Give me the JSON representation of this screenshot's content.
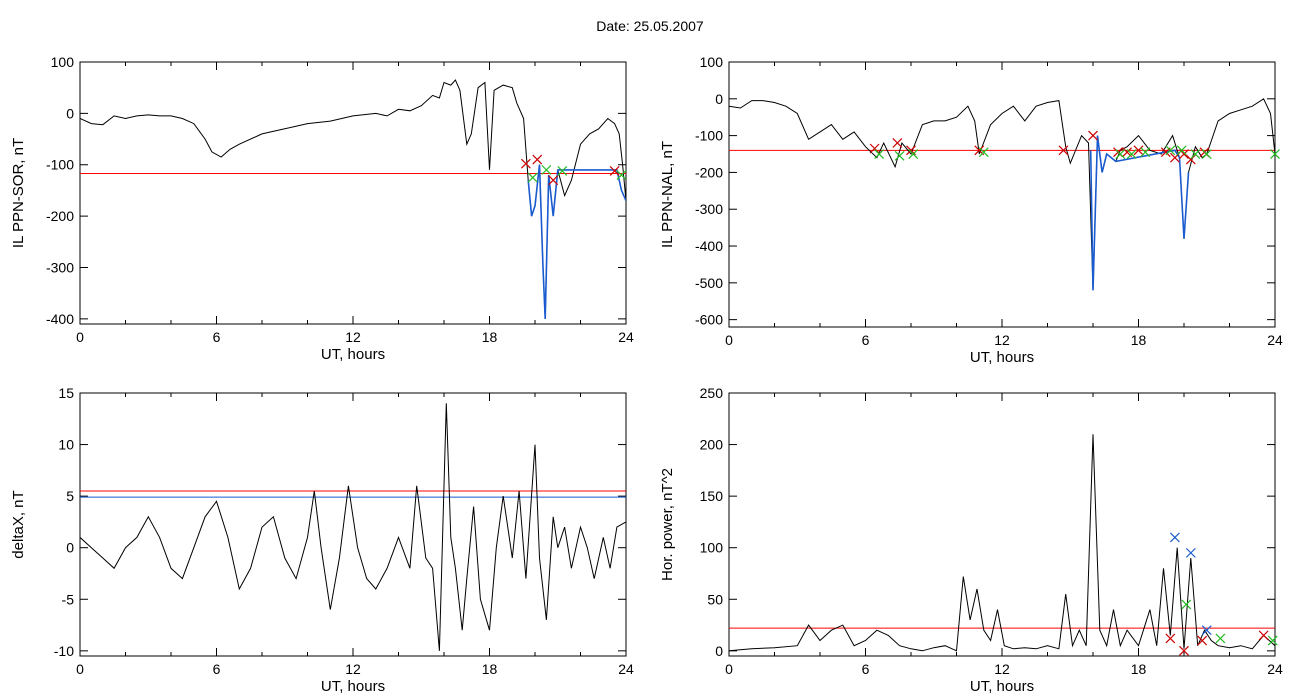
{
  "page": {
    "title": "Date:  25.05.2007"
  },
  "chart_data": [
    {
      "id": "p1",
      "type": "line",
      "xlabel": "UT, hours",
      "ylabel": "IL PPN-SOR, nT",
      "xlim": [
        0,
        24
      ],
      "ylim": [
        -410,
        100
      ],
      "xticks": [
        0,
        6,
        12,
        18,
        24
      ],
      "yticks": [
        -400,
        -300,
        -200,
        -100,
        0,
        100
      ],
      "threshold_lines": [
        {
          "y": -117,
          "color": "#ff0000"
        }
      ],
      "series": [
        {
          "color": "#000000",
          "x": [
            0,
            0.5,
            1,
            1.5,
            2,
            2.5,
            3,
            3.5,
            4,
            4.5,
            5,
            5.5,
            5.8,
            6.2,
            6.6,
            7,
            8,
            9,
            10,
            11,
            12,
            13,
            13.5,
            14,
            14.5,
            15,
            15.5,
            15.8,
            16,
            16.3,
            16.5,
            16.7,
            17,
            17.2,
            17.5,
            17.8,
            18,
            18.2,
            18.6,
            19,
            19.2,
            19.5,
            19.7,
            19.85,
            20,
            20.2,
            20.35,
            20.45,
            20.6,
            20.8,
            21,
            21.3,
            21.6,
            22,
            22.4,
            22.8,
            23.2,
            23.5,
            23.7,
            23.85,
            24
          ],
          "y": [
            -10,
            -20,
            -22,
            -5,
            -10,
            -5,
            -3,
            -5,
            -5,
            -10,
            -20,
            -50,
            -75,
            -85,
            -70,
            -60,
            -40,
            -30,
            -20,
            -15,
            -5,
            0,
            -5,
            8,
            5,
            15,
            35,
            30,
            60,
            55,
            65,
            45,
            -60,
            -40,
            50,
            60,
            -110,
            45,
            55,
            50,
            20,
            -10,
            -130,
            -200,
            -180,
            -100,
            -300,
            -400,
            -120,
            -200,
            -110,
            -160,
            -130,
            -60,
            -40,
            -30,
            -10,
            -20,
            -40,
            -100,
            -170
          ]
        },
        {
          "color": "#1a5ccf",
          "x": [
            19.7,
            19.85,
            20,
            20.2,
            20.35,
            20.45,
            20.6,
            20.8,
            21,
            23.6,
            23.8,
            24
          ],
          "y": [
            -130,
            -200,
            -180,
            -100,
            -300,
            -400,
            -120,
            -200,
            -110,
            -110,
            -150,
            -170
          ]
        }
      ],
      "markers": [
        {
          "color": "#cc0000",
          "x": [
            19.6,
            20.1,
            20.8,
            23.5
          ],
          "y": [
            -98,
            -90,
            -130,
            -112
          ]
        },
        {
          "color": "#22bb22",
          "x": [
            19.9,
            20.5,
            21.2,
            23.8
          ],
          "y": [
            -125,
            -110,
            -112,
            -120
          ]
        }
      ]
    },
    {
      "id": "p2",
      "type": "line",
      "xlabel": "UT, hours",
      "ylabel": "IL PPN-NAL, nT",
      "xlim": [
        0,
        24
      ],
      "ylim": [
        -620,
        100
      ],
      "xticks": [
        0,
        6,
        12,
        18,
        24
      ],
      "yticks": [
        -600,
        -500,
        -400,
        -300,
        -200,
        -100,
        0,
        100
      ],
      "threshold_lines": [
        {
          "y": -140,
          "color": "#ff0000"
        }
      ],
      "series": [
        {
          "color": "#000000",
          "x": [
            0,
            0.5,
            1,
            1.5,
            2,
            2.5,
            3,
            3.5,
            4,
            4.5,
            5,
            5.5,
            6,
            6.5,
            6.8,
            7.3,
            7.6,
            8,
            8.5,
            9,
            9.5,
            10,
            10.5,
            10.8,
            11,
            11.5,
            12,
            12.5,
            13,
            13.5,
            14,
            14.5,
            14.8,
            15,
            15.5,
            15.8,
            16,
            16.2,
            16.4,
            16.6,
            17,
            17.2,
            17.5,
            18,
            18.5,
            19,
            19.5,
            19.8,
            20,
            20.2,
            20.5,
            20.8,
            21,
            21.5,
            22,
            22.5,
            23,
            23.5,
            23.8,
            24
          ],
          "y": [
            -20,
            -25,
            -5,
            -5,
            -10,
            -20,
            -40,
            -110,
            -90,
            -70,
            -110,
            -90,
            -130,
            -160,
            -120,
            -185,
            -120,
            -150,
            -70,
            -60,
            -60,
            -50,
            -20,
            -60,
            -150,
            -70,
            -40,
            -20,
            -60,
            -20,
            -10,
            -5,
            -130,
            -175,
            -100,
            -120,
            -520,
            -100,
            -200,
            -150,
            -170,
            -140,
            -130,
            -100,
            -140,
            -150,
            -100,
            -160,
            -380,
            -200,
            -130,
            -160,
            -150,
            -60,
            -40,
            -30,
            -20,
            0,
            -40,
            -150
          ]
        },
        {
          "color": "#1a5ccf",
          "x": [
            15.9,
            16,
            16.2,
            16.4,
            16.6,
            17,
            19.6,
            19.8,
            20,
            20.2
          ],
          "y": [
            -140,
            -520,
            -100,
            -200,
            -150,
            -170,
            -140,
            -160,
            -380,
            -200
          ]
        }
      ],
      "markers": [
        {
          "color": "#cc0000",
          "x": [
            6.4,
            7.4,
            8,
            11,
            14.7,
            16,
            17.1,
            17.5,
            18,
            19.2,
            19.6,
            20,
            20.3,
            20.9
          ],
          "y": [
            -135,
            -120,
            -140,
            -140,
            -140,
            -100,
            -145,
            -145,
            -140,
            -145,
            -160,
            -150,
            -165,
            -145
          ]
        },
        {
          "color": "#22bb22",
          "x": [
            6.6,
            7.5,
            8.1,
            11.2,
            17.2,
            17.7,
            18.3,
            19.4,
            19.9,
            20.5,
            21,
            24
          ],
          "y": [
            -150,
            -155,
            -150,
            -145,
            -150,
            -150,
            -145,
            -140,
            -140,
            -150,
            -150,
            -150
          ]
        }
      ]
    },
    {
      "id": "p3",
      "type": "line",
      "xlabel": "UT, hours",
      "ylabel": "deltaX, nT",
      "xlim": [
        0,
        24
      ],
      "ylim": [
        -10.5,
        15
      ],
      "xticks": [
        0,
        6,
        12,
        18,
        24
      ],
      "yticks": [
        -10,
        -5,
        0,
        5,
        10,
        15
      ],
      "threshold_lines": [
        {
          "y": 5.5,
          "color": "#ff0000"
        },
        {
          "y": 4.9,
          "color": "#1a5ccf"
        }
      ],
      "series": [
        {
          "color": "#000000",
          "x": [
            0,
            0.5,
            1,
            1.5,
            2,
            2.5,
            3,
            3.5,
            4,
            4.5,
            5,
            5.5,
            6,
            6.5,
            7,
            7.5,
            8,
            8.5,
            9,
            9.5,
            10,
            10.3,
            10.6,
            11,
            11.4,
            11.8,
            12.2,
            12.6,
            13,
            13.5,
            14,
            14.5,
            14.8,
            15.2,
            15.5,
            15.8,
            16.1,
            16.3,
            16.5,
            16.8,
            17,
            17.3,
            17.6,
            18,
            18.3,
            18.6,
            19,
            19.3,
            19.6,
            20,
            20.2,
            20.5,
            20.8,
            21,
            21.3,
            21.6,
            22,
            22.3,
            22.6,
            23,
            23.3,
            23.6,
            24
          ],
          "y": [
            1,
            0,
            -1,
            -2,
            0,
            1,
            3,
            1,
            -2,
            -3,
            0,
            3,
            4.5,
            1,
            -4,
            -2,
            2,
            3,
            -1,
            -3,
            1,
            5.5,
            0,
            -6,
            -1,
            6,
            0,
            -3,
            -4,
            -2,
            1,
            -2,
            6,
            -1,
            -2,
            -10,
            14,
            1,
            -2,
            -8,
            -3,
            4,
            -5,
            -8,
            0,
            5,
            -1,
            5.5,
            -3,
            10,
            -1,
            -7,
            3,
            0,
            2,
            -2,
            2,
            0,
            -3,
            1,
            -2,
            2,
            2.5
          ]
        }
      ],
      "markers": []
    },
    {
      "id": "p4",
      "type": "line",
      "xlabel": "UT, hours",
      "ylabel": "Hor. power, nT^2",
      "xlim": [
        0,
        24
      ],
      "ylim": [
        -5,
        250
      ],
      "xticks": [
        0,
        6,
        12,
        18,
        24
      ],
      "yticks": [
        0,
        50,
        100,
        150,
        200,
        250
      ],
      "threshold_lines": [
        {
          "y": 22,
          "color": "#ff0000"
        }
      ],
      "series": [
        {
          "color": "#000000",
          "x": [
            0,
            1,
            2,
            3,
            3.5,
            4,
            4.5,
            5,
            5.5,
            6,
            6.5,
            7,
            7.5,
            8,
            8.5,
            9,
            9.5,
            10,
            10.3,
            10.6,
            10.9,
            11.2,
            11.5,
            11.8,
            12.1,
            12.5,
            13,
            13.5,
            14,
            14.5,
            14.8,
            15.1,
            15.4,
            15.7,
            16,
            16.3,
            16.6,
            16.9,
            17.2,
            17.5,
            18,
            18.5,
            18.8,
            19.1,
            19.4,
            19.7,
            20,
            20.3,
            20.6,
            20.9,
            21.2,
            21.5,
            22,
            22.5,
            23,
            23.5,
            24
          ],
          "y": [
            0,
            2,
            3,
            5,
            25,
            10,
            20,
            25,
            5,
            10,
            20,
            15,
            5,
            2,
            0,
            3,
            5,
            0,
            72,
            30,
            60,
            20,
            10,
            40,
            5,
            2,
            3,
            2,
            5,
            2,
            55,
            5,
            20,
            5,
            210,
            20,
            5,
            40,
            5,
            20,
            5,
            40,
            5,
            80,
            15,
            100,
            2,
            90,
            5,
            20,
            10,
            5,
            3,
            5,
            2,
            15,
            5
          ]
        }
      ],
      "markers": [
        {
          "color": "#1a5ccf",
          "x": [
            19.6,
            20.3,
            21
          ],
          "y": [
            110,
            95,
            20
          ]
        },
        {
          "color": "#cc0000",
          "x": [
            19.4,
            20,
            20.8,
            23.5
          ],
          "y": [
            12,
            0,
            10,
            15
          ]
        },
        {
          "color": "#22bb22",
          "x": [
            20.1,
            21.6,
            23.9
          ],
          "y": [
            45,
            12,
            10
          ]
        }
      ]
    }
  ]
}
